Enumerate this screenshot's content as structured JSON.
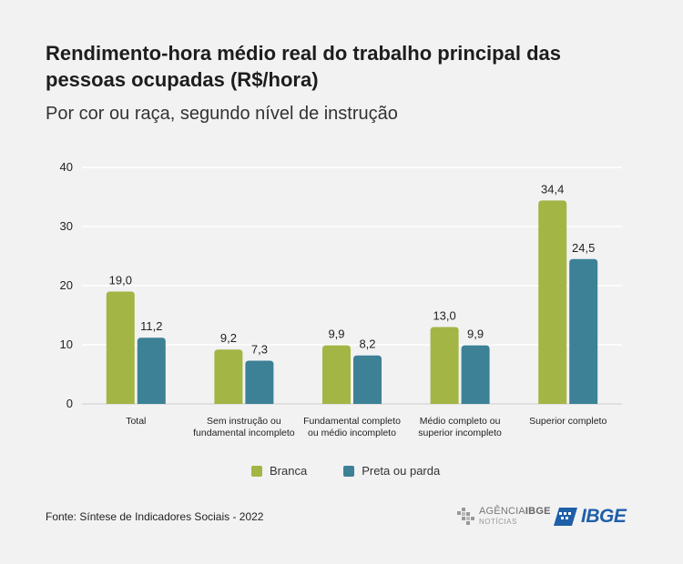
{
  "title": "Rendimento-hora médio real do trabalho principal das pessoas ocupadas (R$/hora)",
  "subtitle": "Por cor ou raça, segundo nível de instrução",
  "source": "Fonte: Síntese de Indicadores Sociais - 2022",
  "logos": {
    "agencia_prefix": "AGÊNCIA",
    "agencia_suffix": "IBGE",
    "agencia_sub": "NOTÍCIAS",
    "ibge": "IBGE"
  },
  "colors": {
    "branca": "#a3b545",
    "preta_parda": "#3c8196",
    "grid": "#ffffff",
    "text": "#222222"
  },
  "chart_data": {
    "type": "bar",
    "title": "Rendimento-hora médio real do trabalho principal das pessoas ocupadas (R$/hora)",
    "subtitle": "Por cor ou raça, segundo nível de instrução",
    "categories": [
      [
        "Total"
      ],
      [
        "Sem instrução ou",
        "fundamental incompleto"
      ],
      [
        "Fundamental completo",
        "ou médio incompleto"
      ],
      [
        "Médio completo ou",
        "superior incompleto"
      ],
      [
        "Superior completo"
      ]
    ],
    "series": [
      {
        "name": "Branca",
        "values": [
          19.0,
          9.2,
          9.9,
          13.0,
          34.4
        ],
        "labels": [
          "19,0",
          "9,2",
          "9,9",
          "13,0",
          "34,4"
        ]
      },
      {
        "name": "Preta ou parda",
        "values": [
          11.2,
          7.3,
          8.2,
          9.9,
          24.5
        ],
        "labels": [
          "11,2",
          "7,3",
          "8,2",
          "9,9",
          "24,5"
        ]
      }
    ],
    "yticks": [
      0,
      10,
      20,
      30,
      40
    ],
    "ylim": [
      0,
      40
    ],
    "grid": true,
    "legend": "bottom-center"
  }
}
